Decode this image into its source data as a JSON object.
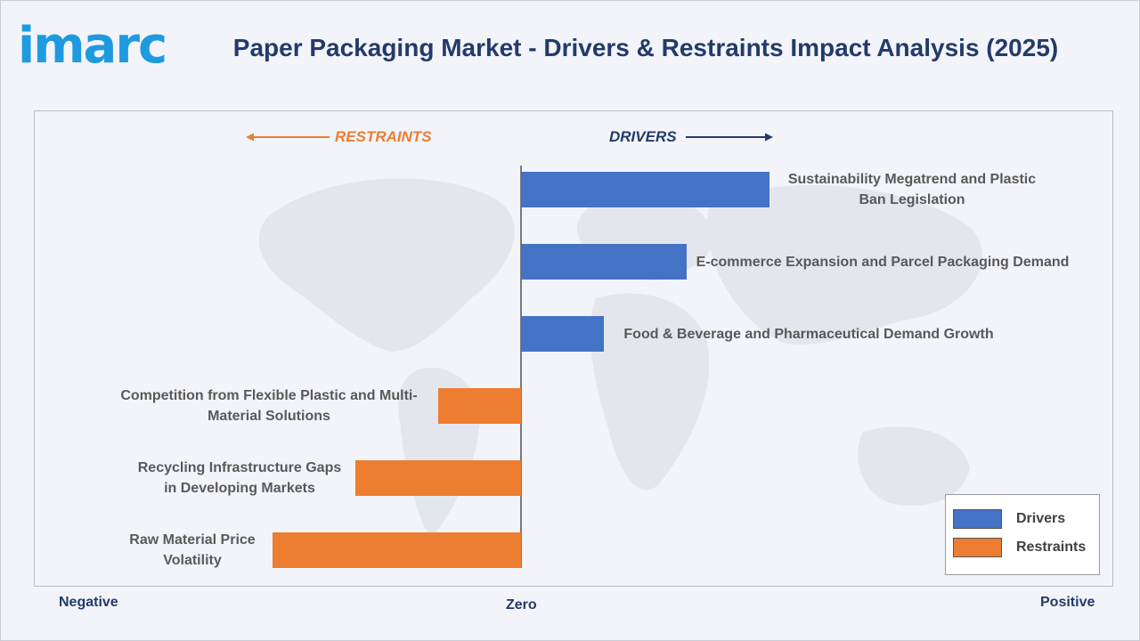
{
  "logo": {
    "text": "imarc"
  },
  "title": "Paper Packaging Market - Drivers & Restraints Impact Analysis (2025)",
  "colors": {
    "drivers": "#4472c4",
    "restraints": "#ed7d31",
    "title": "#233b6b",
    "logo": "#1e9be0"
  },
  "chart_data": {
    "type": "bar",
    "orientation": "horizontal",
    "title": "Paper Packaging Market - Drivers & Restraints Impact Analysis (2025)",
    "direction_labels": {
      "restraints": "RESTRAINTS",
      "drivers": "DRIVERS"
    },
    "axis_labels": {
      "negative": "Negative",
      "zero": "Zero",
      "positive": "Positive"
    },
    "xlim": [
      -3,
      3
    ],
    "categories": [
      "Sustainability Megatrend and Plastic Ban Legislation",
      "E-commerce Expansion and Parcel Packaging Demand",
      "Food & Beverage and Pharmaceutical Demand Growth",
      "Competition from Flexible Plastic and Multi-Material Solutions",
      "Recycling Infrastructure Gaps in Developing Markets",
      "Raw Material Price Volatility"
    ],
    "series": [
      {
        "name": "Drivers",
        "values": [
          3,
          2,
          1,
          null,
          null,
          null
        ]
      },
      {
        "name": "Restraints",
        "values": [
          null,
          null,
          null,
          -1,
          -2,
          -3
        ]
      }
    ],
    "legend": {
      "position": "bottom-right",
      "entries": [
        "Drivers",
        "Restraints"
      ]
    },
    "grid": false
  }
}
